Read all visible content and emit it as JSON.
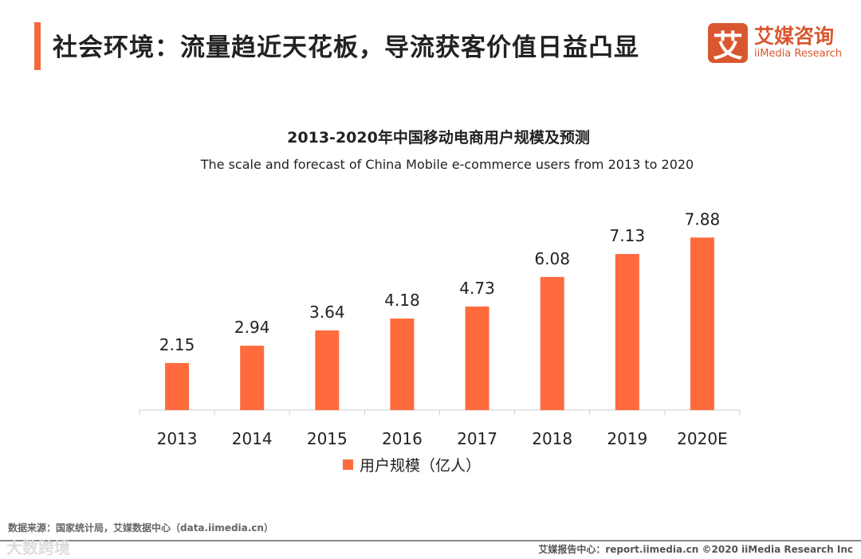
{
  "header": {
    "title": "社会环境：流量趋近天花板，导流获客价值日益凸显",
    "logo_mark": "艾",
    "logo_cn": "艾媒咨询",
    "logo_en": "iiMedia Research"
  },
  "chart_data": {
    "type": "bar",
    "title": "2013-2020年中国移动电商用户规模及预测",
    "subtitle": "The scale and forecast of China Mobile e-commerce users from 2013 to 2020",
    "categories": [
      "2013",
      "2014",
      "2015",
      "2016",
      "2017",
      "2018",
      "2019",
      "2020E"
    ],
    "series": [
      {
        "name": "用户规模（亿人）",
        "values": [
          2.15,
          2.94,
          3.64,
          4.18,
          4.73,
          6.08,
          7.13,
          7.88
        ]
      }
    ],
    "ylim": [
      0,
      8.5
    ],
    "legend": "bottom",
    "grid": false,
    "color": "#FF6B3D"
  },
  "footer": {
    "source": "数据来源：国家统计局，艾媒数据中心（data.iimedia.cn）",
    "watermark": "大数跨境",
    "report": "艾媒报告中心：report.iimedia.cn  ©2020  iiMedia Research Inc"
  }
}
